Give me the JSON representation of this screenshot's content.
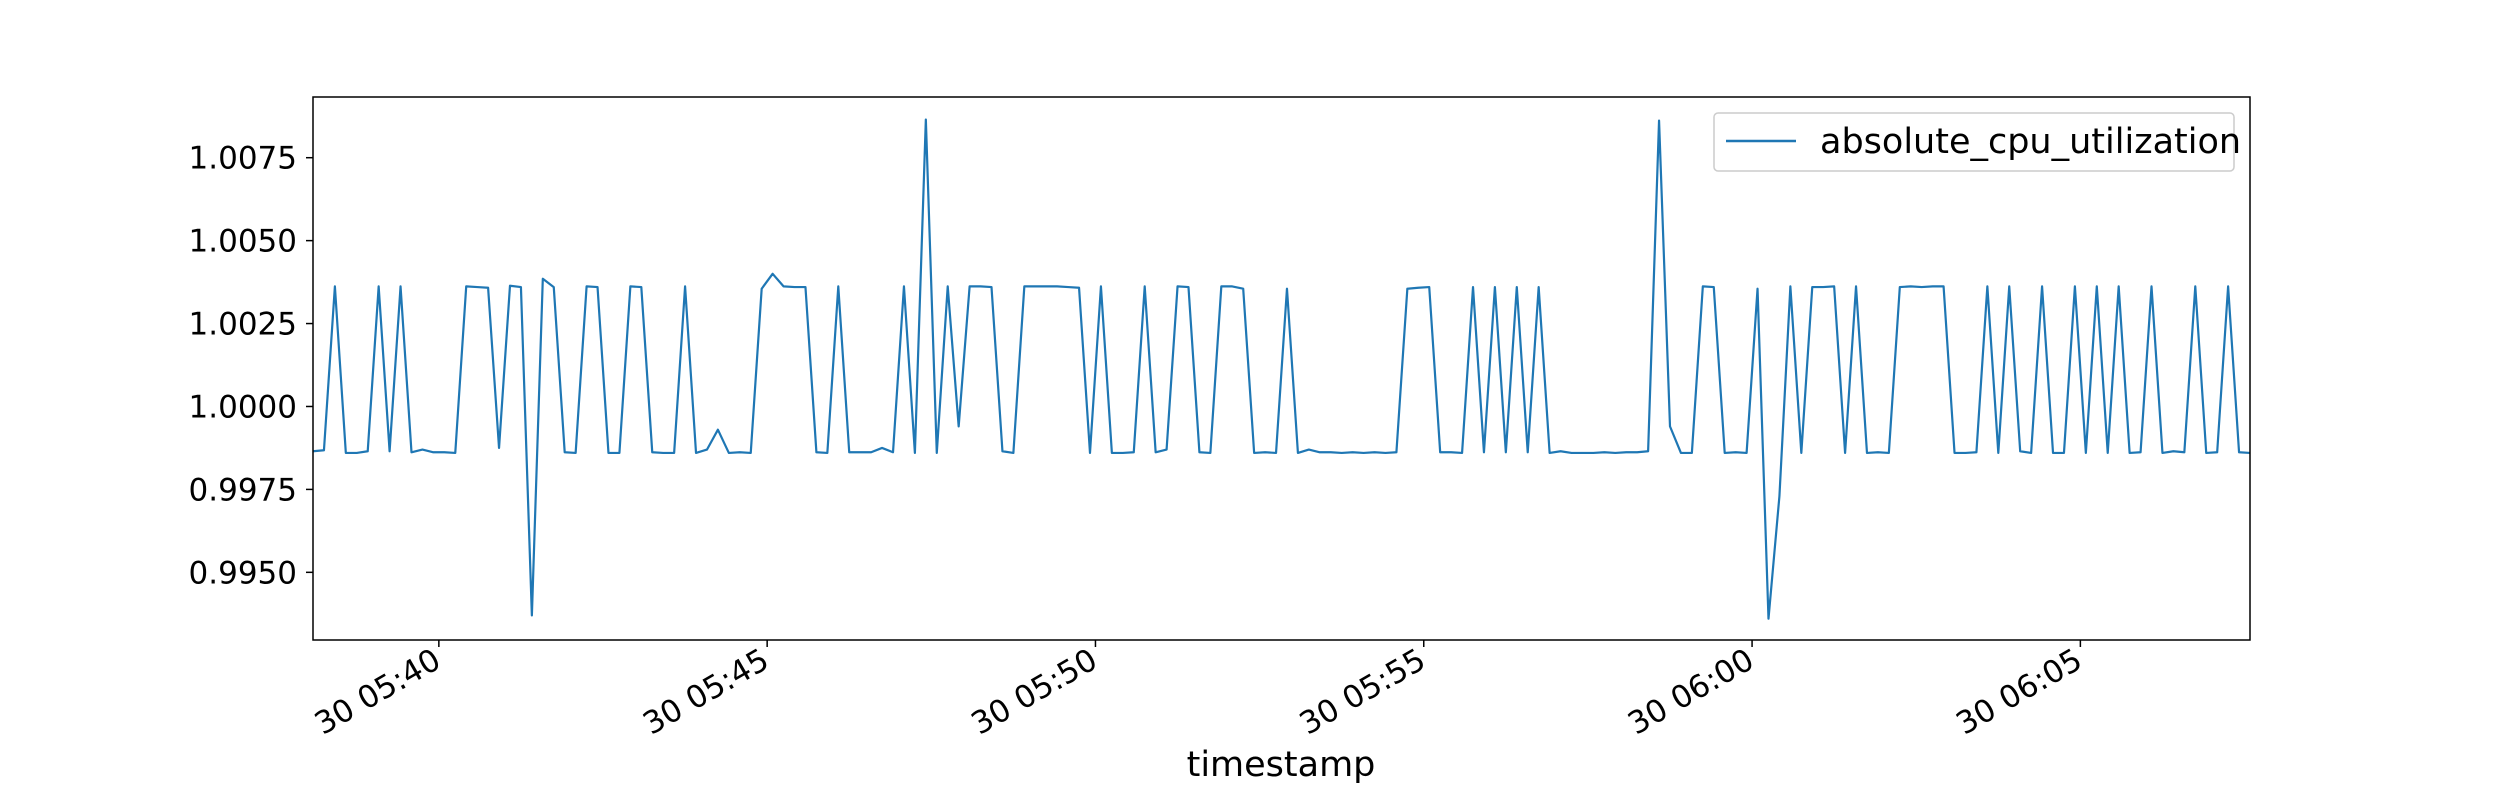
{
  "chart_data": {
    "type": "line",
    "xlabel": "timestamp",
    "ylabel": "",
    "grid": false,
    "legend_position": "top-right",
    "xlim": [
      "2014-02-30 05:38:05",
      "2014-02-30 06:07:35"
    ],
    "ylim": [
      0.99296,
      1.00933
    ],
    "x_ticks": [
      "30 05:40",
      "30 05:45",
      "30 05:50",
      "30 05:55",
      "30 06:00",
      "30 06:05"
    ],
    "y_ticks": [
      "0.9950",
      "0.9975",
      "1.0000",
      "1.0025",
      "1.0050",
      "1.0075"
    ],
    "series": [
      {
        "name": "absolute_cpu_utilization",
        "color": "#1f77b4",
        "x": [
          "05:38:05",
          "05:38:15",
          "05:38:25",
          "05:38:35",
          "05:38:45",
          "05:38:55",
          "05:39:05",
          "05:39:15",
          "05:39:25",
          "05:39:35",
          "05:39:45",
          "05:39:55",
          "05:40:05",
          "05:40:15",
          "05:40:25",
          "05:40:35",
          "05:40:45",
          "05:40:55",
          "05:41:05",
          "05:41:15",
          "05:41:25",
          "05:41:35",
          "05:41:45",
          "05:41:55",
          "05:42:05",
          "05:42:15",
          "05:42:25",
          "05:42:35",
          "05:42:45",
          "05:42:55",
          "05:43:05",
          "05:43:15",
          "05:43:25",
          "05:43:35",
          "05:43:45",
          "05:43:55",
          "05:44:05",
          "05:44:15",
          "05:44:25",
          "05:44:35",
          "05:44:45",
          "05:44:55",
          "05:45:05",
          "05:45:15",
          "05:45:25",
          "05:45:35",
          "05:45:45",
          "05:45:55",
          "05:46:05",
          "05:46:15",
          "05:46:25",
          "05:46:35",
          "05:46:45",
          "05:46:55",
          "05:47:05",
          "05:47:15",
          "05:47:25",
          "05:47:35",
          "05:47:45",
          "05:47:55",
          "05:48:05",
          "05:48:15",
          "05:48:25",
          "05:48:35",
          "05:48:45",
          "05:48:55",
          "05:49:05",
          "05:49:15",
          "05:49:25",
          "05:49:35",
          "05:49:45",
          "05:49:55",
          "05:50:05",
          "05:50:15",
          "05:50:25",
          "05:50:35",
          "05:50:45",
          "05:50:55",
          "05:51:05",
          "05:51:15",
          "05:51:25",
          "05:51:35",
          "05:51:45",
          "05:51:55",
          "05:52:05",
          "05:52:15",
          "05:52:25",
          "05:52:35",
          "05:52:45",
          "05:52:55",
          "05:53:05",
          "05:53:15",
          "05:53:25",
          "05:53:35",
          "05:53:45",
          "05:53:55",
          "05:54:05",
          "05:54:15",
          "05:54:25",
          "05:54:35",
          "05:54:45",
          "05:54:55",
          "05:55:05",
          "05:55:15",
          "05:55:25",
          "05:55:35",
          "05:55:45",
          "05:55:55",
          "05:56:05",
          "05:56:15",
          "05:56:25",
          "05:56:35",
          "05:56:45",
          "05:56:55",
          "05:57:05",
          "05:57:15",
          "05:57:25",
          "05:57:35",
          "05:57:45",
          "05:57:55",
          "05:58:05",
          "05:58:15",
          "05:58:25",
          "05:58:35",
          "05:58:45",
          "05:58:55",
          "05:59:05",
          "05:59:15",
          "05:59:25",
          "05:59:35",
          "05:59:45",
          "05:59:55",
          "06:00:05",
          "06:00:15",
          "06:00:25",
          "06:00:35",
          "06:00:45",
          "06:00:55",
          "06:01:05",
          "06:01:15",
          "06:01:25",
          "06:01:35",
          "06:01:45",
          "06:01:55",
          "06:02:05",
          "06:02:15",
          "06:02:25",
          "06:02:35",
          "06:02:45",
          "06:02:55",
          "06:03:05",
          "06:03:15",
          "06:03:25",
          "06:03:35",
          "06:03:45",
          "06:03:55",
          "06:04:05",
          "06:04:15",
          "06:04:25",
          "06:04:35",
          "06:04:45",
          "06:04:55",
          "06:05:05",
          "06:05:15",
          "06:05:25",
          "06:05:35",
          "06:05:45",
          "06:05:55",
          "06:06:05",
          "06:06:15",
          "06:06:25",
          "06:06:35",
          "06:06:45",
          "06:06:55",
          "06:07:05",
          "06:07:15",
          "06:07:25",
          "06:07:35"
        ],
        "values": [
          0.99865,
          0.99868,
          1.00362,
          0.9986,
          0.9986,
          0.99865,
          1.00362,
          0.99865,
          1.00362,
          0.99862,
          0.9987,
          0.99862,
          0.99862,
          0.9986,
          1.00362,
          1.0036,
          1.00358,
          0.99875,
          1.00364,
          1.0036,
          0.9937,
          1.00385,
          1.0036,
          0.99862,
          0.9986,
          1.00362,
          1.0036,
          0.9986,
          0.9986,
          1.00362,
          1.0036,
          0.99862,
          0.9986,
          0.9986,
          1.00362,
          0.9986,
          0.9987,
          0.9993,
          0.9986,
          0.99862,
          0.9986,
          1.00355,
          1.004,
          1.00362,
          1.0036,
          1.0036,
          0.99862,
          0.9986,
          1.00362,
          0.99862,
          0.99862,
          0.99862,
          0.99875,
          0.99862,
          1.00362,
          0.9986,
          1.00865,
          0.9986,
          1.00362,
          0.9994,
          1.00362,
          1.00362,
          1.0036,
          0.99865,
          0.9986,
          1.00362,
          1.00362,
          1.00362,
          1.00362,
          1.0036,
          1.00358,
          0.9986,
          1.00362,
          0.9986,
          0.9986,
          0.99862,
          1.00362,
          0.99862,
          0.9987,
          1.00362,
          1.0036,
          0.99862,
          0.9986,
          1.00362,
          1.00362,
          1.00355,
          0.9986,
          0.99862,
          0.9986,
          1.00355,
          0.9986,
          0.9987,
          0.99862,
          0.99862,
          0.9986,
          0.99862,
          0.9986,
          0.99862,
          0.9986,
          0.99862,
          1.00355,
          1.00358,
          1.0036,
          0.99862,
          0.99862,
          0.9986,
          1.0036,
          0.99862,
          1.0036,
          0.99862,
          1.0036,
          0.99862,
          1.0036,
          0.9986,
          0.99865,
          0.9986,
          0.9986,
          0.9986,
          0.99862,
          0.9986,
          0.99862,
          0.99862,
          0.99865,
          1.00862,
          0.9994,
          0.9986,
          0.9986,
          1.00362,
          1.0036,
          0.9986,
          0.99862,
          0.9986,
          1.00355,
          0.9936,
          0.9973,
          1.00362,
          0.9986,
          1.0036,
          1.0036,
          1.00362,
          0.9986,
          1.00362,
          0.9986,
          0.99862,
          0.9986,
          1.0036,
          1.00362,
          1.0036,
          1.00362,
          1.00362,
          0.9986,
          0.9986,
          0.99862,
          1.00362,
          0.9986,
          1.00362,
          0.99865,
          0.9986,
          1.00362,
          0.9986,
          0.9986,
          1.00362,
          0.9986,
          1.00362,
          0.9986,
          1.00362,
          0.9986,
          0.99862,
          1.00362,
          0.9986,
          0.99865,
          0.99862,
          1.00362,
          0.9986,
          0.99862,
          1.00362,
          0.99862,
          0.9986
        ]
      }
    ]
  }
}
